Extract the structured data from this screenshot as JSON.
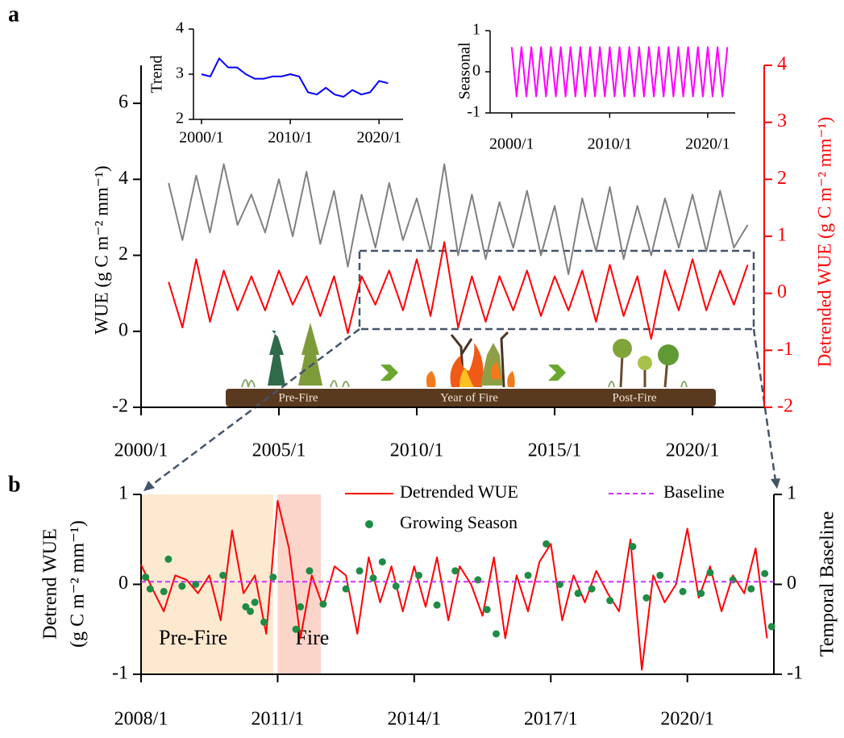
{
  "panel_labels": [
    "a",
    "b"
  ],
  "chart_data": [
    {
      "type": "line",
      "y_label": "WUE (g C m⁻² mm⁻¹)",
      "y2_label": "Detrended WUE (g C m⁻² mm⁻¹)",
      "y2_color": "#ff0000",
      "annotations": [
        "Pre-Fire",
        "Year of Fire",
        "Post-Fire"
      ],
      "xlim": [
        2000,
        2022.6
      ],
      "xticks": [
        {
          "value": 2000,
          "label": "2000/1"
        },
        {
          "value": 2005,
          "label": "2005/1"
        },
        {
          "value": 2010,
          "label": "2010/1"
        },
        {
          "value": 2015,
          "label": "2015/1"
        },
        {
          "value": 2020,
          "label": "2020/1"
        }
      ],
      "ylim": [
        -2,
        7
      ],
      "yticks": [
        -2,
        0,
        2,
        4,
        6
      ],
      "y2lim": [
        -2,
        4
      ],
      "y2ticks": [
        -2,
        -1,
        0,
        1,
        2,
        3,
        4
      ],
      "x": [
        2001,
        2001.5,
        2002,
        2002.5,
        2003,
        2003.5,
        2004,
        2004.5,
        2005,
        2005.5,
        2006,
        2006.5,
        2007,
        2007.5,
        2008,
        2008.5,
        2009,
        2009.5,
        2010,
        2010.5,
        2011,
        2011.5,
        2012,
        2012.5,
        2013,
        2013.5,
        2014,
        2014.5,
        2015,
        2015.5,
        2016,
        2016.5,
        2017,
        2017.5,
        2018,
        2018.5,
        2019,
        2019.5,
        2020,
        2020.5,
        2021,
        2021.5,
        2022
      ],
      "series": [
        {
          "color": "#808080",
          "values": [
            3.9,
            2.4,
            4.1,
            2.6,
            4.4,
            2.8,
            3.6,
            2.6,
            4.0,
            2.5,
            4.2,
            2.3,
            3.7,
            1.7,
            3.6,
            2.2,
            3.9,
            2.4,
            3.5,
            2.1,
            4.4,
            2.0,
            3.6,
            1.9,
            3.4,
            2.2,
            3.7,
            2.0,
            3.3,
            1.5,
            3.5,
            2.1,
            3.8,
            1.9,
            3.3,
            2.0,
            3.5,
            2.2,
            3.6,
            2.1,
            3.7,
            2.2,
            2.8
          ]
        },
        {
          "color": "#ff0000",
          "axis": "y2",
          "values": [
            0.2,
            -0.6,
            0.6,
            -0.5,
            0.4,
            -0.3,
            0.3,
            -0.3,
            0.4,
            -0.2,
            0.3,
            -0.4,
            0.3,
            -0.7,
            0.3,
            -0.2,
            0.4,
            -0.3,
            0.6,
            -0.4,
            0.9,
            -0.6,
            0.3,
            -0.5,
            0.3,
            -0.3,
            0.4,
            -0.4,
            0.3,
            -0.3,
            0.4,
            -0.5,
            0.5,
            -0.4,
            0.3,
            -0.8,
            0.4,
            -0.3,
            0.6,
            -0.3,
            0.4,
            -0.2,
            0.5
          ]
        }
      ]
    },
    {
      "type": "line",
      "y_label": "Trend",
      "color": "#0000ff",
      "xlim": [
        1999.1,
        2022.7
      ],
      "xticks": [
        {
          "value": 2000,
          "label": "2000/1"
        },
        {
          "value": 2010,
          "label": "2010/1"
        },
        {
          "value": 2020,
          "label": "2020/1"
        }
      ],
      "ylim": [
        2,
        4
      ],
      "yticks": [
        2,
        3,
        4
      ],
      "x": [
        2000,
        2001,
        2002,
        2003,
        2004,
        2005,
        2006,
        2007,
        2008,
        2009,
        2010,
        2011,
        2012,
        2013,
        2014,
        2015,
        2016,
        2017,
        2018,
        2019,
        2020,
        2021
      ],
      "values": [
        3.0,
        2.95,
        3.35,
        3.15,
        3.15,
        3.0,
        2.9,
        2.9,
        2.95,
        2.95,
        3.0,
        2.95,
        2.6,
        2.55,
        2.7,
        2.55,
        2.5,
        2.65,
        2.55,
        2.6,
        2.85,
        2.8
      ]
    },
    {
      "type": "line",
      "y_label": "Seasonal",
      "color": "#ff00ff",
      "xlim": [
        1997.8,
        2022.8
      ],
      "xticks": [
        {
          "value": 2000,
          "label": "2000/1"
        },
        {
          "value": 2010,
          "label": "2010/1"
        },
        {
          "value": 2020,
          "label": "2020/1"
        }
      ],
      "ylim": [
        -1,
        1
      ],
      "yticks": [
        -1,
        0,
        1
      ],
      "x": [
        2000,
        2000.5,
        2001,
        2001.5,
        2002,
        2002.5,
        2003,
        2003.5,
        2004,
        2004.5,
        2005,
        2005.5,
        2006,
        2006.5,
        2007,
        2007.5,
        2008,
        2008.5,
        2009,
        2009.5,
        2010,
        2010.5,
        2011,
        2011.5,
        2012,
        2012.5,
        2013,
        2013.5,
        2014,
        2014.5,
        2015,
        2015.5,
        2016,
        2016.5,
        2017,
        2017.5,
        2018,
        2018.5,
        2019,
        2019.5,
        2020,
        2020.5,
        2021,
        2021.5,
        2022
      ],
      "values": [
        0.6,
        -0.6,
        0.6,
        -0.6,
        0.6,
        -0.6,
        0.6,
        -0.6,
        0.6,
        -0.6,
        0.6,
        -0.6,
        0.6,
        -0.6,
        0.6,
        -0.6,
        0.6,
        -0.6,
        0.6,
        -0.6,
        0.6,
        -0.6,
        0.6,
        -0.6,
        0.6,
        -0.6,
        0.6,
        -0.6,
        0.6,
        -0.6,
        0.6,
        -0.6,
        0.6,
        -0.6,
        0.6,
        -0.6,
        0.6,
        -0.6,
        0.6,
        -0.6,
        0.6,
        -0.6,
        0.6,
        -0.6,
        0.6
      ]
    },
    {
      "type": "line",
      "y_label": [
        "Detrend WUE",
        "(g C m⁻² mm⁻¹)"
      ],
      "y2_label": "Temporal Baseline",
      "xlim": [
        2008,
        2021.9
      ],
      "xticks": [
        {
          "value": 2008,
          "label": "2008/1"
        },
        {
          "value": 2011,
          "label": "2011/1"
        },
        {
          "value": 2014,
          "label": "2014/1"
        },
        {
          "value": 2017,
          "label": "2017/1"
        },
        {
          "value": 2020,
          "label": "2020/1"
        }
      ],
      "ylim": [
        -1,
        1
      ],
      "yticks": [
        -1,
        0,
        1
      ],
      "y2lim": [
        -1,
        1
      ],
      "y2ticks": [
        -1,
        0,
        1
      ],
      "regions": [
        {
          "label": "Pre-Fire",
          "x": [
            2008,
            2010.9
          ],
          "color": "#fde9d0"
        },
        {
          "label": "Fire",
          "x": [
            2011,
            2011.95
          ],
          "color": "#fbd5c9"
        }
      ],
      "series": [
        {
          "name": "Detrended WUE",
          "color": "#ff0000",
          "x": [
            2008,
            2008.25,
            2008.5,
            2008.75,
            2009,
            2009.25,
            2009.5,
            2009.75,
            2010,
            2010.25,
            2010.5,
            2010.75,
            2011,
            2011.25,
            2011.5,
            2011.75,
            2012,
            2012.25,
            2012.5,
            2012.75,
            2013,
            2013.25,
            2013.5,
            2013.75,
            2014,
            2014.25,
            2014.5,
            2014.75,
            2015,
            2015.25,
            2015.5,
            2015.75,
            2016,
            2016.25,
            2016.5,
            2016.75,
            2017,
            2017.25,
            2017.5,
            2017.75,
            2018,
            2018.25,
            2018.5,
            2018.75,
            2019,
            2019.25,
            2019.5,
            2019.75,
            2020,
            2020.25,
            2020.5,
            2020.75,
            2021,
            2021.25,
            2021.5,
            2021.75
          ],
          "values": [
            0.22,
            -0.05,
            -0.3,
            0.1,
            0.05,
            -0.1,
            0.1,
            -0.4,
            0.6,
            -0.1,
            0.1,
            -0.55,
            0.93,
            0.4,
            -0.6,
            0.1,
            -0.25,
            0.2,
            0.1,
            -0.55,
            0.3,
            -0.2,
            0.2,
            -0.3,
            0.2,
            -0.25,
            0.3,
            -0.4,
            0.2,
            0.0,
            -0.35,
            0.3,
            -0.6,
            0.1,
            -0.3,
            0.25,
            0.45,
            -0.4,
            0.1,
            -0.2,
            0.15,
            -0.1,
            -0.3,
            0.5,
            -0.95,
            0.1,
            -0.2,
            0.0,
            0.62,
            -0.15,
            0.2,
            -0.3,
            0.1,
            -0.1,
            0.4,
            -0.6
          ]
        },
        {
          "name": "Growing Season",
          "color": "#1e8c45",
          "type": "scatter",
          "x": [
            2008.1,
            2008.2,
            2008.5,
            2008.6,
            2008.9,
            2009.2,
            2009.8,
            2010.3,
            2010.4,
            2010.5,
            2010.7,
            2010.9,
            2011.4,
            2011.5,
            2011.7,
            2012.0,
            2012.5,
            2012.8,
            2013.1,
            2013.3,
            2013.6,
            2014.1,
            2014.5,
            2014.9,
            2015.4,
            2015.6,
            2015.8,
            2016.5,
            2016.9,
            2017.2,
            2017.6,
            2017.9,
            2018.3,
            2018.8,
            2019.1,
            2019.4,
            2019.9,
            2020.3,
            2020.5,
            2021.0,
            2021.4,
            2021.7,
            2021.85
          ],
          "values": [
            0.08,
            -0.05,
            -0.08,
            0.28,
            -0.02,
            0.0,
            0.1,
            -0.25,
            -0.3,
            -0.2,
            -0.42,
            0.08,
            -0.5,
            -0.25,
            0.15,
            -0.22,
            -0.05,
            0.15,
            0.07,
            0.25,
            -0.02,
            0.1,
            -0.23,
            0.15,
            0.05,
            -0.28,
            -0.55,
            0.1,
            0.45,
            0.0,
            -0.1,
            -0.05,
            -0.18,
            0.42,
            -0.15,
            0.1,
            -0.08,
            -0.1,
            0.13,
            0.05,
            -0.05,
            0.12,
            -0.47
          ]
        },
        {
          "name": "Baseline",
          "color": "#cc33ff",
          "axis": "y2",
          "dashed": true,
          "x": [
            2008,
            2021.9
          ],
          "values": [
            0.03,
            0.03
          ]
        }
      ]
    }
  ]
}
